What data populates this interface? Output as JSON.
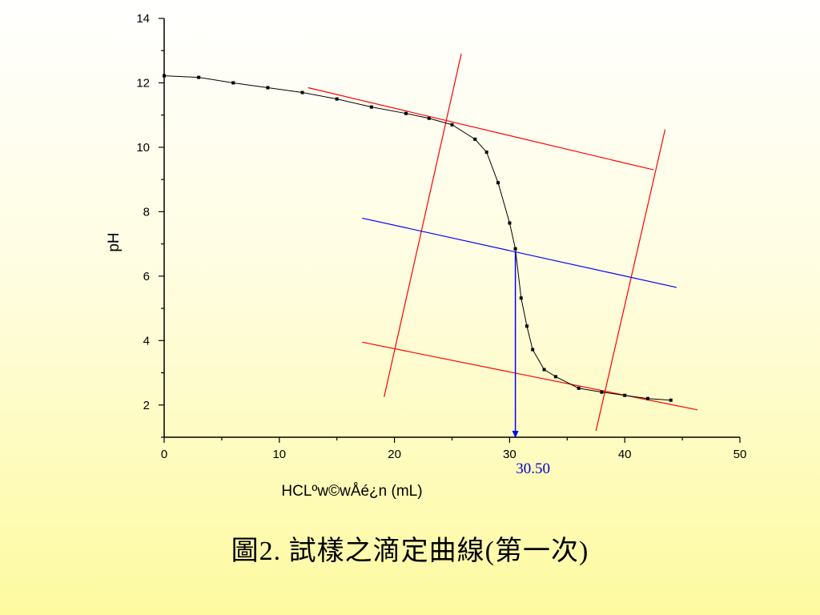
{
  "caption": "圖2.  試樣之滴定曲線(第一次)",
  "chart_data": {
    "type": "line",
    "title": "",
    "xlabel": "HCLºw©wÅé¿n (mL)",
    "ylabel": "pH",
    "xlim": [
      0,
      50
    ],
    "ylim": [
      1,
      14
    ],
    "xticks": [
      0,
      10,
      20,
      30,
      40,
      50
    ],
    "yticks": [
      2,
      4,
      6,
      8,
      10,
      12,
      14
    ],
    "grid": false,
    "series": [
      {
        "color": "#000000",
        "marker": "square",
        "x": [
          0,
          3,
          6,
          9,
          12,
          15,
          18,
          21,
          23,
          25,
          27,
          28,
          29,
          30,
          30.5,
          31,
          31.5,
          32,
          33,
          34,
          36,
          38,
          40,
          42,
          44
        ],
        "y": [
          12.22,
          12.17,
          12.0,
          11.85,
          11.7,
          11.5,
          11.25,
          11.05,
          10.9,
          10.7,
          10.25,
          9.85,
          8.9,
          7.65,
          6.85,
          5.32,
          4.45,
          3.72,
          3.1,
          2.88,
          2.52,
          2.4,
          2.3,
          2.2,
          2.15
        ]
      }
    ],
    "construction_lines": [
      {
        "color": "#ff0000",
        "x": [
          12.5,
          42.5
        ],
        "y": [
          11.85,
          9.3
        ]
      },
      {
        "color": "#ff0000",
        "x": [
          17.2,
          46.3
        ],
        "y": [
          3.95,
          1.85
        ]
      },
      {
        "color": "#ff0000",
        "x": [
          19.1,
          25.8
        ],
        "y": [
          2.25,
          12.9
        ]
      },
      {
        "color": "#ff0000",
        "x": [
          37.5,
          43.5
        ],
        "y": [
          1.2,
          10.55
        ]
      },
      {
        "color": "#0000ff",
        "x": [
          17.2,
          44.5
        ],
        "y": [
          7.8,
          5.65
        ]
      }
    ],
    "equivalence_marker": {
      "color": "#0000ff",
      "x": 30.5,
      "y_from": 6.75,
      "y_to": 1
    },
    "annotations": [
      {
        "text": "30.50",
        "x": 30.5,
        "color": "#0000ff"
      }
    ]
  }
}
